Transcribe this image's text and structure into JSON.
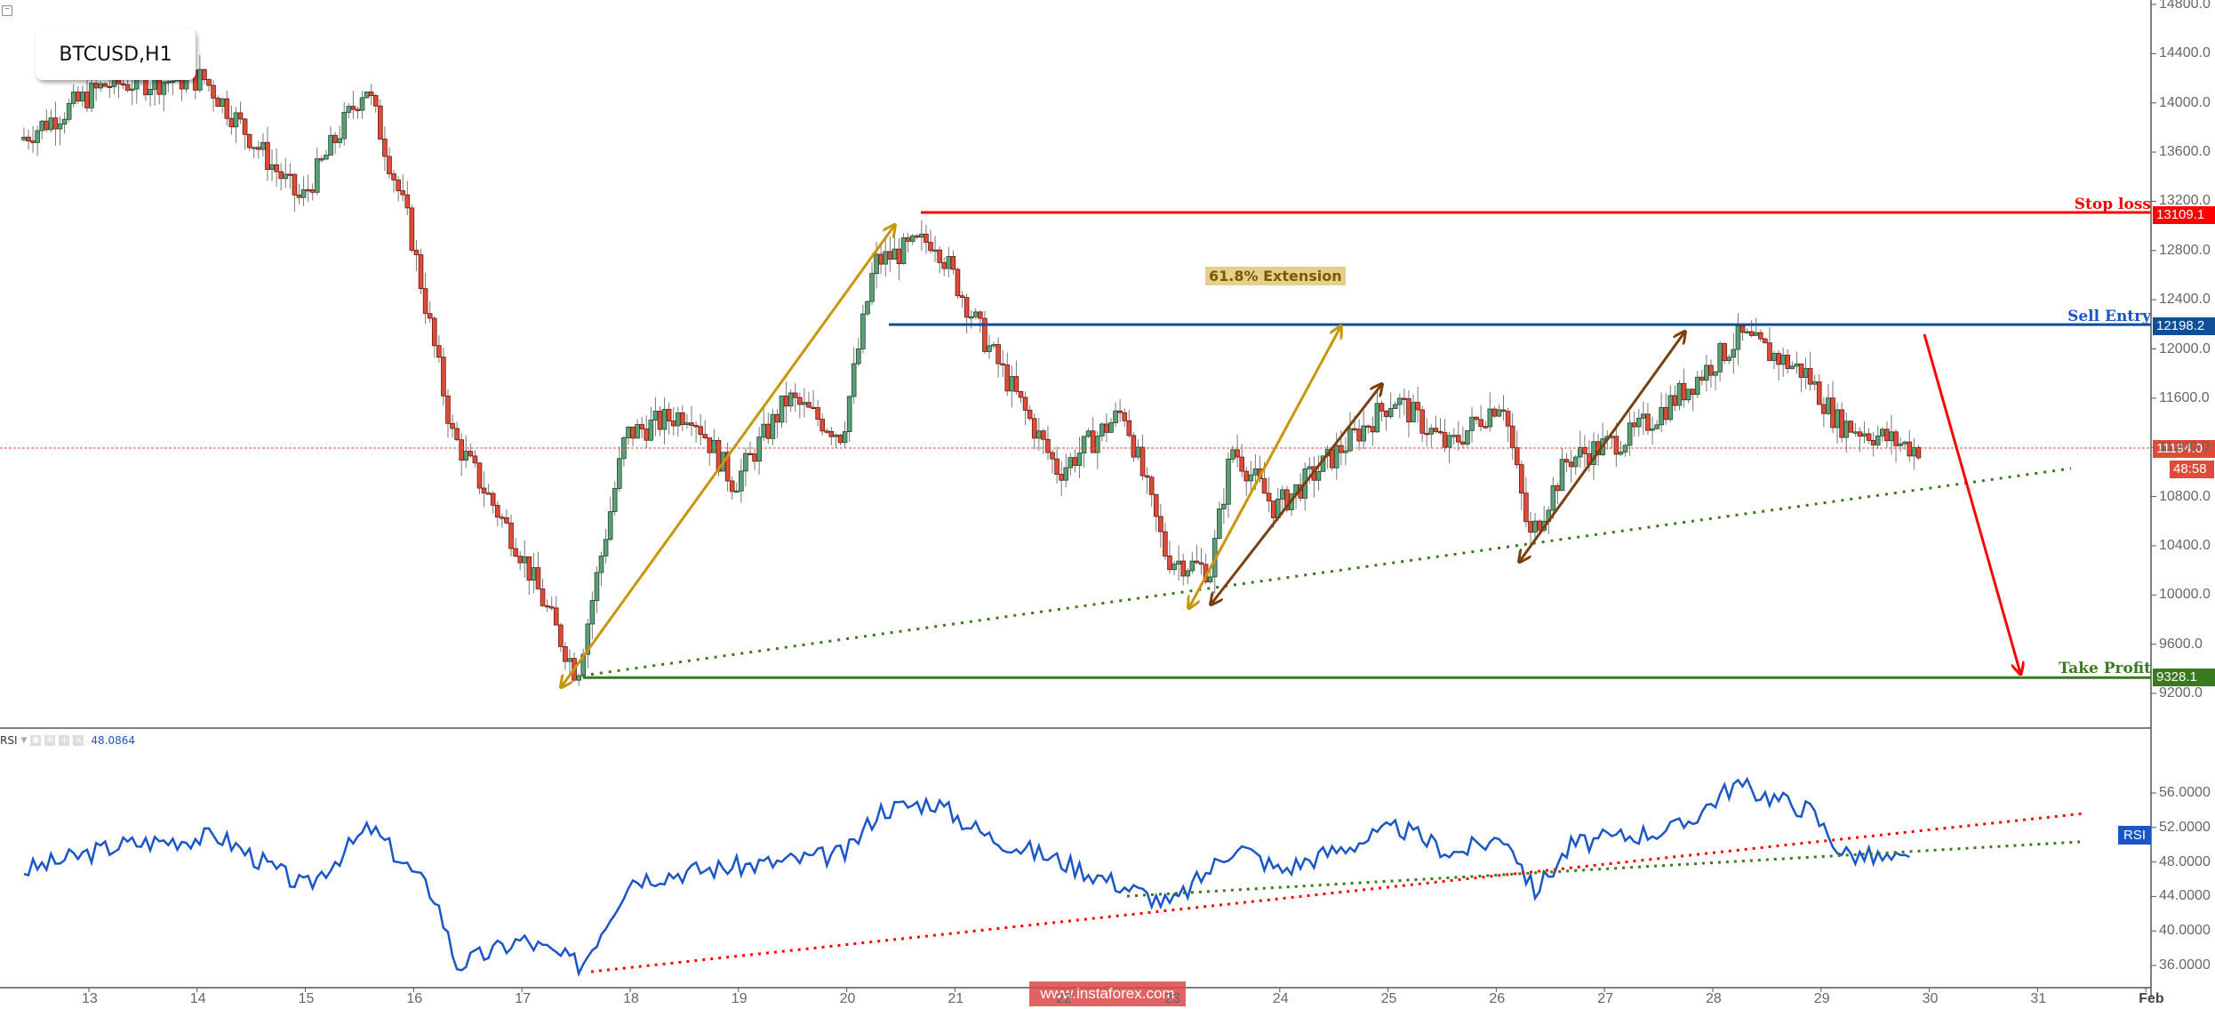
{
  "header": {
    "symbol_label": "BTCUSD,H1",
    "collapse_icon": "minus-square-icon"
  },
  "levels": {
    "stop_loss": {
      "label": "Stop loss",
      "value": "13109.1",
      "color": "#ff0000"
    },
    "sell_entry": {
      "label": "Sell Entry",
      "value": "12198.2",
      "color": "#0f4f96"
    },
    "take_profit": {
      "label": "Take Profit",
      "value": "9328.1",
      "color": "#3a7a1e"
    },
    "current_price": {
      "value": "11194.0",
      "timer": "48:58",
      "color": "#dd4b39"
    }
  },
  "annotation": {
    "extension_label": "61.8% Extension"
  },
  "rsi_panel": {
    "label": "RSI",
    "value": "48.0864",
    "tag_label": "RSI",
    "buttons": [
      "eye-icon",
      "gear-icon",
      "plus-icon",
      "close-icon"
    ]
  },
  "watermark": "www.instaforex.com",
  "chart_data": [
    {
      "type": "candlestick",
      "title": "BTCUSD,H1",
      "xlabel": "",
      "ylabel": "Price",
      "x_ticks": [
        "13",
        "14",
        "15",
        "16",
        "17",
        "18",
        "19",
        "20",
        "21",
        "22",
        "23",
        "24",
        "25",
        "26",
        "27",
        "28",
        "29",
        "30",
        "31",
        "Feb"
      ],
      "y_ticks": [
        "14800.0",
        "14400.0",
        "14000.0",
        "13600.0",
        "13200.0",
        "12800.0",
        "12400.0",
        "12000.0",
        "11600.0",
        "11200.0",
        "10800.0",
        "10400.0",
        "10000.0",
        "9600.0",
        "9200.0"
      ],
      "ylim": [
        9000,
        14800
      ],
      "grid": false,
      "key_points": [
        {
          "date": "12.4",
          "price": 13700
        },
        {
          "date": "13.2",
          "price": 14150
        },
        {
          "date": "14.1",
          "price": 14200
        },
        {
          "date": "15.0",
          "price": 13200
        },
        {
          "date": "15.6",
          "price": 14150
        },
        {
          "date": "16.0",
          "price": 13000
        },
        {
          "date": "16.4",
          "price": 11300
        },
        {
          "date": "17.0",
          "price": 10400
        },
        {
          "date": "17.55",
          "price": 9350
        },
        {
          "date": "18.0",
          "price": 11300
        },
        {
          "date": "18.6",
          "price": 11500
        },
        {
          "date": "19.0",
          "price": 10900
        },
        {
          "date": "19.5",
          "price": 11600
        },
        {
          "date": "20.0",
          "price": 11300
        },
        {
          "date": "20.3",
          "price": 12700
        },
        {
          "date": "20.85",
          "price": 12900
        },
        {
          "date": "21.3",
          "price": 12100
        },
        {
          "date": "22.0",
          "price": 11000
        },
        {
          "date": "22.6",
          "price": 11500
        },
        {
          "date": "23.0",
          "price": 10300
        },
        {
          "date": "23.4",
          "price": 10200
        },
        {
          "date": "23.6",
          "price": 11200
        },
        {
          "date": "24.0",
          "price": 10700
        },
        {
          "date": "24.5",
          "price": 11100
        },
        {
          "date": "25.1",
          "price": 11600
        },
        {
          "date": "25.6",
          "price": 11200
        },
        {
          "date": "26.1",
          "price": 11600
        },
        {
          "date": "26.35",
          "price": 10450
        },
        {
          "date": "26.7",
          "price": 11100
        },
        {
          "date": "27.3",
          "price": 11300
        },
        {
          "date": "27.7",
          "price": 11600
        },
        {
          "date": "28.3",
          "price": 12100
        },
        {
          "date": "28.9",
          "price": 11800
        },
        {
          "date": "29.2",
          "price": 11400
        },
        {
          "date": "29.9",
          "price": 11194
        }
      ],
      "levels": [
        {
          "name": "Stop loss",
          "value": 13109.1
        },
        {
          "name": "Sell Entry",
          "value": 12198.2
        },
        {
          "name": "Take Profit",
          "value": 9328.1
        },
        {
          "name": "Current",
          "value": 11194.0
        }
      ],
      "annotations": [
        "61.8% Extension",
        "ascending dotted support trendline",
        "projection arrow down to Take Profit"
      ]
    },
    {
      "type": "line",
      "title": "RSI",
      "y_ticks": [
        "56.0000",
        "52.0000",
        "48.0000",
        "44.0000",
        "40.0000",
        "36.0000"
      ],
      "ylim": [
        34.5,
        58
      ],
      "current_value": 48.0864,
      "key_points": [
        {
          "date": "12.4",
          "value": 47
        },
        {
          "date": "13.3",
          "value": 50
        },
        {
          "date": "14.2",
          "value": 51
        },
        {
          "date": "15.0",
          "value": 45
        },
        {
          "date": "15.6",
          "value": 52
        },
        {
          "date": "16.2",
          "value": 44
        },
        {
          "date": "16.4",
          "value": 36
        },
        {
          "date": "17.0",
          "value": 39
        },
        {
          "date": "17.55",
          "value": 36
        },
        {
          "date": "18.0",
          "value": 46
        },
        {
          "date": "18.6",
          "value": 47
        },
        {
          "date": "19.4",
          "value": 48
        },
        {
          "date": "20.0",
          "value": 49
        },
        {
          "date": "20.3",
          "value": 54
        },
        {
          "date": "20.8",
          "value": 55
        },
        {
          "date": "21.3",
          "value": 51
        },
        {
          "date": "22.0",
          "value": 48
        },
        {
          "date": "23.0",
          "value": 43
        },
        {
          "date": "23.6",
          "value": 50
        },
        {
          "date": "24.0",
          "value": 47
        },
        {
          "date": "25.1",
          "value": 52
        },
        {
          "date": "25.6",
          "value": 49
        },
        {
          "date": "26.1",
          "value": 51
        },
        {
          "date": "26.35",
          "value": 44.5
        },
        {
          "date": "26.7",
          "value": 50
        },
        {
          "date": "27.7",
          "value": 52
        },
        {
          "date": "28.2",
          "value": 57
        },
        {
          "date": "28.9",
          "value": 54
        },
        {
          "date": "29.2",
          "value": 49
        },
        {
          "date": "29.8",
          "value": 48
        }
      ]
    }
  ]
}
